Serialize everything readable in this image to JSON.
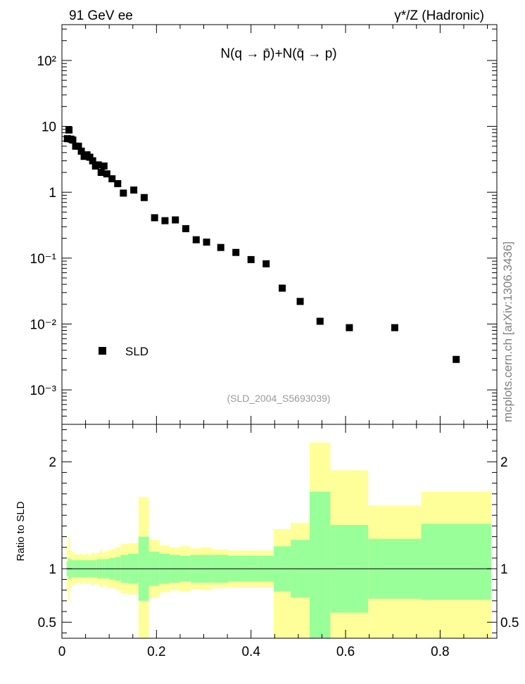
{
  "header": {
    "left": "91 GeV ee",
    "right": "γ*/Z (Hadronic)"
  },
  "side_credit": "mcplots.cern.ch [arXiv:1306.3436]",
  "colors": {
    "data_marker": "#000000",
    "band_outer": "#ffff99",
    "band_inner": "#99ff99",
    "watermark": "#999999",
    "side_credit": "#808080"
  },
  "chart_data": [
    {
      "type": "scatter",
      "title": "N(q → p̄)+N(q̄ → p)",
      "watermark": "(SLD_2004_S5693039)",
      "yscale": "log",
      "xlim": [
        0,
        0.92
      ],
      "ylim": [
        0.0003,
        350
      ],
      "ytick_labels": [
        "10⁻³",
        "10⁻²",
        "10⁻¹",
        "1",
        "10",
        "10²"
      ],
      "legend": {
        "position": "bottom-left",
        "entries": [
          "SLD"
        ]
      },
      "series": [
        {
          "name": "SLD",
          "marker": "square",
          "x": [
            0.0115,
            0.015,
            0.019,
            0.023,
            0.029,
            0.035,
            0.041,
            0.047,
            0.053,
            0.059,
            0.065,
            0.071,
            0.077,
            0.083,
            0.089,
            0.095,
            0.106,
            0.118,
            0.13,
            0.152,
            0.174,
            0.196,
            0.218,
            0.24,
            0.262,
            0.284,
            0.306,
            0.336,
            0.368,
            0.4,
            0.432,
            0.466,
            0.504,
            0.546,
            0.608,
            0.704,
            0.834
          ],
          "y": [
            6.5,
            8.8,
            6.4,
            6.2,
            5.0,
            5.0,
            4.2,
            3.5,
            3.7,
            3.4,
            3.0,
            2.5,
            2.6,
            2.0,
            2.5,
            1.9,
            1.6,
            1.35,
            0.97,
            1.08,
            0.83,
            0.41,
            0.37,
            0.38,
            0.28,
            0.19,
            0.175,
            0.145,
            0.122,
            0.095,
            0.082,
            0.035,
            0.022,
            0.011,
            0.0088,
            0.0088,
            0.0029
          ]
        }
      ]
    },
    {
      "type": "area",
      "ylabel": "Ratio to SLD",
      "xlim": [
        0,
        0.92
      ],
      "ylim": [
        0.35,
        2.35
      ],
      "xticks": [
        0,
        0.2,
        0.4,
        0.6,
        0.8
      ],
      "x_tick_labels": [
        "0",
        "0.2",
        "0.4",
        "0.6",
        "0.8"
      ],
      "yticks": [
        0.5,
        1,
        2
      ],
      "y_tick_labels": [
        "0.5",
        "1",
        "2"
      ],
      "reference_line": 1,
      "bins": [
        [
          0.01,
          0.013,
          0.93,
          1.07,
          0.78,
          1.22
        ],
        [
          0.013,
          0.017,
          0.9,
          1.1,
          0.7,
          1.3
        ],
        [
          0.017,
          0.021,
          0.91,
          1.09,
          0.83,
          1.17
        ],
        [
          0.021,
          0.026,
          0.92,
          1.08,
          0.84,
          1.16
        ],
        [
          0.026,
          0.032,
          0.92,
          1.08,
          0.86,
          1.14
        ],
        [
          0.032,
          0.038,
          0.92,
          1.08,
          0.87,
          1.13
        ],
        [
          0.038,
          0.044,
          0.92,
          1.08,
          0.86,
          1.14
        ],
        [
          0.044,
          0.05,
          0.92,
          1.08,
          0.87,
          1.13
        ],
        [
          0.05,
          0.056,
          0.92,
          1.08,
          0.86,
          1.14
        ],
        [
          0.056,
          0.062,
          0.92,
          1.08,
          0.87,
          1.13
        ],
        [
          0.062,
          0.068,
          0.92,
          1.08,
          0.85,
          1.15
        ],
        [
          0.068,
          0.074,
          0.92,
          1.08,
          0.86,
          1.14
        ],
        [
          0.074,
          0.08,
          0.91,
          1.09,
          0.85,
          1.15
        ],
        [
          0.08,
          0.086,
          0.91,
          1.09,
          0.83,
          1.17
        ],
        [
          0.086,
          0.092,
          0.91,
          1.09,
          0.85,
          1.15
        ],
        [
          0.092,
          0.1,
          0.91,
          1.09,
          0.83,
          1.17
        ],
        [
          0.1,
          0.112,
          0.9,
          1.1,
          0.82,
          1.18
        ],
        [
          0.112,
          0.124,
          0.89,
          1.11,
          0.8,
          1.2
        ],
        [
          0.124,
          0.14,
          0.87,
          1.13,
          0.77,
          1.23
        ],
        [
          0.14,
          0.162,
          0.86,
          1.14,
          0.76,
          1.24
        ],
        [
          0.162,
          0.184,
          0.7,
          1.3,
          0.33,
          1.67
        ],
        [
          0.184,
          0.206,
          0.84,
          1.16,
          0.73,
          1.27
        ],
        [
          0.206,
          0.228,
          0.86,
          1.14,
          0.78,
          1.22
        ],
        [
          0.228,
          0.25,
          0.87,
          1.13,
          0.8,
          1.2
        ],
        [
          0.25,
          0.272,
          0.88,
          1.12,
          0.79,
          1.21
        ],
        [
          0.272,
          0.294,
          0.87,
          1.13,
          0.81,
          1.19
        ],
        [
          0.294,
          0.318,
          0.87,
          1.13,
          0.8,
          1.2
        ],
        [
          0.318,
          0.352,
          0.87,
          1.13,
          0.82,
          1.18
        ],
        [
          0.352,
          0.384,
          0.88,
          1.12,
          0.83,
          1.17
        ],
        [
          0.384,
          0.416,
          0.88,
          1.12,
          0.83,
          1.17
        ],
        [
          0.416,
          0.448,
          0.88,
          1.12,
          0.83,
          1.17
        ],
        [
          0.448,
          0.484,
          0.79,
          1.21,
          0.33,
          1.37
        ],
        [
          0.484,
          0.524,
          0.73,
          1.27,
          0.33,
          1.43
        ],
        [
          0.524,
          0.568,
          0.33,
          1.72,
          0.33,
          2.18
        ],
        [
          0.568,
          0.648,
          0.59,
          1.41,
          0.33,
          1.92
        ],
        [
          0.648,
          0.76,
          0.72,
          1.28,
          0.33,
          1.59
        ],
        [
          0.76,
          0.908,
          0.71,
          1.42,
          0.33,
          1.72
        ]
      ]
    }
  ]
}
